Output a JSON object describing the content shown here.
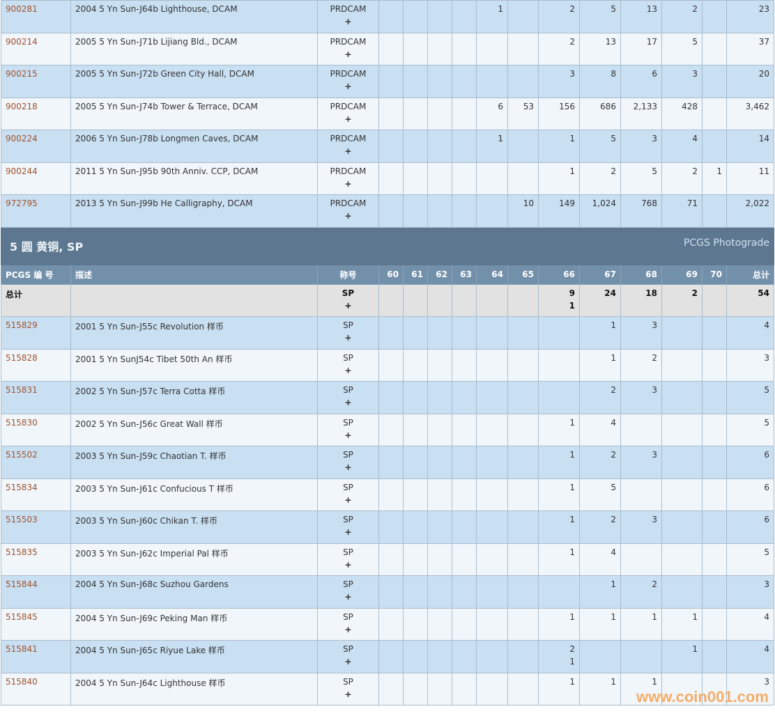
{
  "grades": [
    "60",
    "61",
    "62",
    "63",
    "64",
    "65",
    "66",
    "67",
    "68",
    "69",
    "70"
  ],
  "top_rows": [
    {
      "id": "900281",
      "desc": "2004 5 Yn Sun-J64b Lighthouse, DCAM",
      "des": "PRDCAM",
      "plus": "+",
      "counts": [
        "",
        "",
        "",
        "",
        "1",
        "",
        "2",
        "5",
        "13",
        "2",
        ""
      ],
      "total": "23"
    },
    {
      "id": "900214",
      "desc": "2005 5 Yn Sun-J71b Lijiang Bld., DCAM",
      "des": "PRDCAM",
      "plus": "+",
      "counts": [
        "",
        "",
        "",
        "",
        "",
        "",
        "2",
        "13",
        "17",
        "5",
        ""
      ],
      "total": "37"
    },
    {
      "id": "900215",
      "desc": "2005 5 Yn Sun-J72b Green City Hall, DCAM",
      "des": "PRDCAM",
      "plus": "+",
      "counts": [
        "",
        "",
        "",
        "",
        "",
        "",
        "3",
        "8",
        "6",
        "3",
        ""
      ],
      "total": "20"
    },
    {
      "id": "900218",
      "desc": "2005 5 Yn Sun-J74b Tower & Terrace, DCAM",
      "des": "PRDCAM",
      "plus": "+",
      "counts": [
        "",
        "",
        "",
        "",
        "6",
        "53",
        "156",
        "686",
        "2,133",
        "428",
        ""
      ],
      "total": "3,462"
    },
    {
      "id": "900224",
      "desc": "2006 5 Yn Sun-J78b Longmen Caves, DCAM",
      "des": "PRDCAM",
      "plus": "+",
      "counts": [
        "",
        "",
        "",
        "",
        "1",
        "",
        "1",
        "5",
        "3",
        "4",
        ""
      ],
      "total": "14"
    },
    {
      "id": "900244",
      "desc": "2011 5 Yn Sun-J95b 90th Anniv. CCP, DCAM",
      "des": "PRDCAM",
      "plus": "+",
      "counts": [
        "",
        "",
        "",
        "",
        "",
        "",
        "1",
        "2",
        "5",
        "2",
        "1"
      ],
      "total": "11"
    },
    {
      "id": "972795",
      "desc": "2013 5 Yn Sun-J99b He Calligraphy, DCAM",
      "des": "PRDCAM",
      "plus": "+",
      "counts": [
        "",
        "",
        "",
        "",
        "",
        "10",
        "149",
        "1,024",
        "768",
        "71",
        ""
      ],
      "total": "2,022"
    }
  ],
  "section": {
    "title": "5 圆 黄铜, SP",
    "right": "PCGS Photograde"
  },
  "header": {
    "id": "PCGS 编 号",
    "desc": "描述",
    "des": "称号",
    "total": "总计"
  },
  "total_row": {
    "label": "总计",
    "des": "SP",
    "plus": "+",
    "counts": [
      "",
      "",
      "",
      "",
      "",
      "",
      "9",
      "24",
      "18",
      "2",
      ""
    ],
    "plus_counts": [
      "",
      "",
      "",
      "",
      "",
      "",
      "1",
      "",
      "",
      "",
      ""
    ],
    "total": "54"
  },
  "rows": [
    {
      "id": "515829",
      "desc": "2001 5 Yn Sun-J55c Revolution 样币",
      "des": "SP",
      "plus": "+",
      "counts": [
        "",
        "",
        "",
        "",
        "",
        "",
        "",
        "1",
        "3",
        "",
        ""
      ],
      "total": "4"
    },
    {
      "id": "515828",
      "desc": "2001 5 Yn SunJ54c Tibet 50th An 样币",
      "des": "SP",
      "plus": "+",
      "counts": [
        "",
        "",
        "",
        "",
        "",
        "",
        "",
        "1",
        "2",
        "",
        ""
      ],
      "total": "3"
    },
    {
      "id": "515831",
      "desc": "2002 5 Yn Sun-J57c Terra Cotta 样币",
      "des": "SP",
      "plus": "+",
      "counts": [
        "",
        "",
        "",
        "",
        "",
        "",
        "",
        "2",
        "3",
        "",
        ""
      ],
      "total": "5"
    },
    {
      "id": "515830",
      "desc": "2002 5 Yn Sun-J56c Great Wall 样币",
      "des": "SP",
      "plus": "+",
      "counts": [
        "",
        "",
        "",
        "",
        "",
        "",
        "1",
        "4",
        "",
        "",
        ""
      ],
      "total": "5"
    },
    {
      "id": "515502",
      "desc": "2003 5 Yn Sun-J59c Chaotian T. 样币",
      "des": "SP",
      "plus": "+",
      "counts": [
        "",
        "",
        "",
        "",
        "",
        "",
        "1",
        "2",
        "3",
        "",
        ""
      ],
      "total": "6"
    },
    {
      "id": "515834",
      "desc": "2003 5 Yn Sun-J61c Confucious T 样币",
      "des": "SP",
      "plus": "+",
      "counts": [
        "",
        "",
        "",
        "",
        "",
        "",
        "1",
        "5",
        "",
        "",
        ""
      ],
      "total": "6"
    },
    {
      "id": "515503",
      "desc": "2003 5 Yn Sun-J60c Chikan T. 样币",
      "des": "SP",
      "plus": "+",
      "counts": [
        "",
        "",
        "",
        "",
        "",
        "",
        "1",
        "2",
        "3",
        "",
        ""
      ],
      "total": "6"
    },
    {
      "id": "515835",
      "desc": "2003 5 Yn Sun-J62c Imperial Pal 样币",
      "des": "SP",
      "plus": "+",
      "counts": [
        "",
        "",
        "",
        "",
        "",
        "",
        "1",
        "4",
        "",
        "",
        ""
      ],
      "total": "5"
    },
    {
      "id": "515844",
      "desc": "2004 5 Yn Sun-J68c Suzhou Gardens",
      "des": "SP",
      "plus": "+",
      "counts": [
        "",
        "",
        "",
        "",
        "",
        "",
        "",
        "1",
        "2",
        "",
        ""
      ],
      "total": "3"
    },
    {
      "id": "515845",
      "desc": "2004 5 Yn Sun-J69c Peking Man 样币",
      "des": "SP",
      "plus": "+",
      "counts": [
        "",
        "",
        "",
        "",
        "",
        "",
        "1",
        "1",
        "1",
        "1",
        ""
      ],
      "total": "4"
    },
    {
      "id": "515841",
      "desc": "2004 5 Yn Sun-J65c Riyue Lake 样币",
      "des": "SP",
      "plus": "+",
      "counts": [
        "",
        "",
        "",
        "",
        "",
        "",
        "2",
        "",
        "",
        "1",
        ""
      ],
      "plus_counts": [
        "",
        "",
        "",
        "",
        "",
        "",
        "1",
        "",
        "",
        "",
        ""
      ],
      "total": "4"
    },
    {
      "id": "515840",
      "desc": "2004 5 Yn Sun-J64c Lighthouse 样币",
      "des": "SP",
      "plus": "+",
      "counts": [
        "",
        "",
        "",
        "",
        "",
        "",
        "1",
        "1",
        "1",
        "",
        ""
      ],
      "total": "3"
    }
  ],
  "watermark": "www.coin001.com",
  "colors": {
    "link": "#a0522d",
    "row_blue": "#c9dff2",
    "row_light": "#f1f6fb",
    "section": "#5c778f",
    "header": "#7390ab",
    "total_bg": "#e2e2e2"
  }
}
